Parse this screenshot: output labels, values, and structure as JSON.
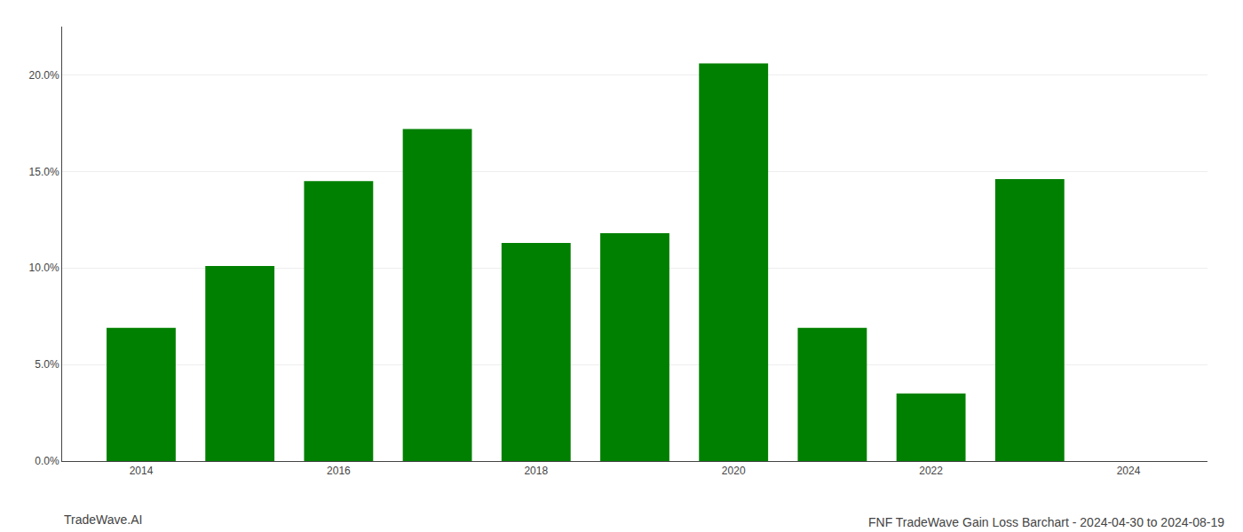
{
  "chart_data": {
    "type": "bar",
    "title": "FNF TradeWave Gain Loss Barchart - 2024-04-30 to 2024-08-19",
    "annotations": [
      "TradeWave.AI"
    ],
    "x": [
      2014,
      2015,
      2016,
      2017,
      2018,
      2019,
      2020,
      2021,
      2022,
      2023
    ],
    "values": [
      0.069,
      0.101,
      0.145,
      0.172,
      0.113,
      0.118,
      0.206,
      0.069,
      0.035,
      0.146
    ],
    "color": "#008000",
    "xlim": [
      2013.2,
      2024.8
    ],
    "xticks": [
      2014,
      2016,
      2018,
      2020,
      2022,
      2024
    ],
    "ylim": [
      0,
      0.225
    ],
    "yticks": [
      {
        "value": 0.0,
        "label": "0.0%"
      },
      {
        "value": 0.05,
        "label": "5.0%"
      },
      {
        "value": 0.1,
        "label": "10.0%"
      },
      {
        "value": 0.15,
        "label": "15.0%"
      },
      {
        "value": 0.2,
        "label": "20.0%"
      }
    ],
    "grid": true
  }
}
